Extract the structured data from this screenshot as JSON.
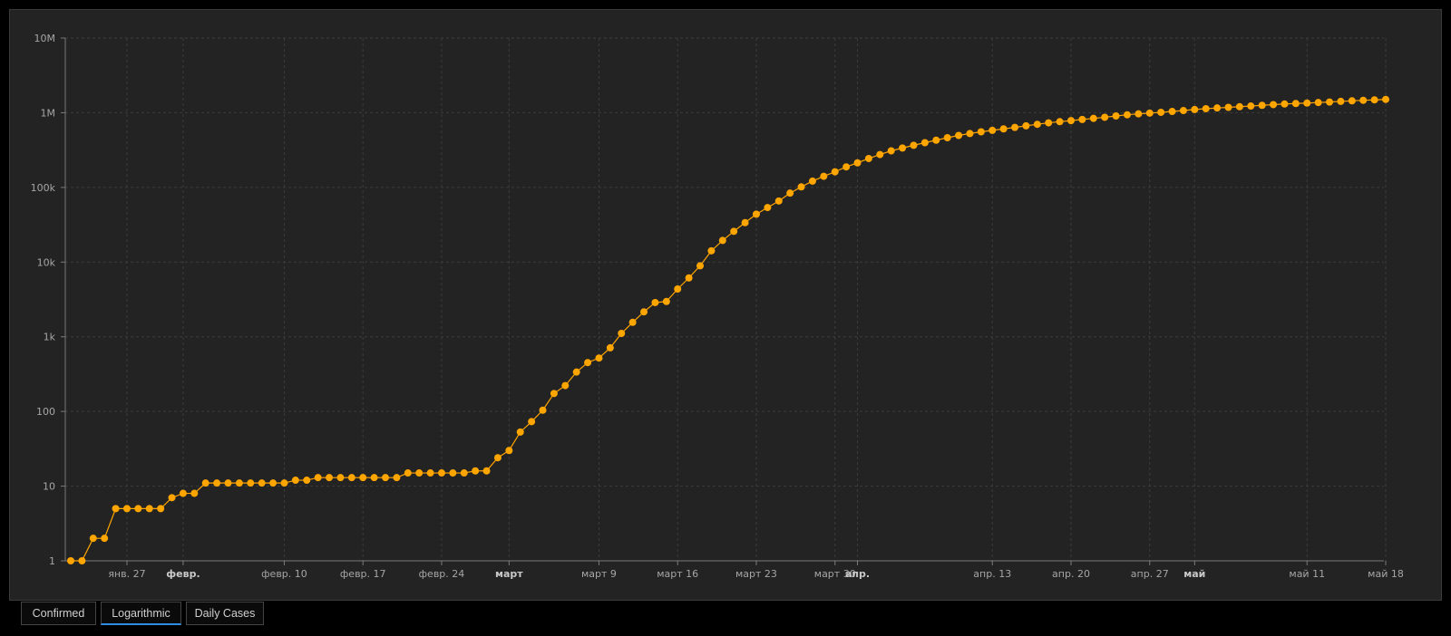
{
  "chart_data": {
    "type": "line",
    "scale_y": "log",
    "ylim": [
      1,
      10000000
    ],
    "y_ticks": [
      {
        "value": 1,
        "label": "1"
      },
      {
        "value": 10,
        "label": "10"
      },
      {
        "value": 100,
        "label": "100"
      },
      {
        "value": 1000,
        "label": "1k"
      },
      {
        "value": 10000,
        "label": "10k"
      },
      {
        "value": 100000,
        "label": "100k"
      },
      {
        "value": 1000000,
        "label": "1M"
      },
      {
        "value": 10000000,
        "label": "10M"
      }
    ],
    "x_start": "2020-01-22",
    "x_end": "2020-05-18",
    "x_ticks": [
      {
        "date": "2020-01-27",
        "label": "янв. 27",
        "bold": false
      },
      {
        "date": "2020-02-01",
        "label": "февр.",
        "bold": true
      },
      {
        "date": "2020-02-10",
        "label": "февр. 10",
        "bold": false
      },
      {
        "date": "2020-02-17",
        "label": "февр. 17",
        "bold": false
      },
      {
        "date": "2020-02-24",
        "label": "февр. 24",
        "bold": false
      },
      {
        "date": "2020-03-01",
        "label": "март",
        "bold": true
      },
      {
        "date": "2020-03-09",
        "label": "март 9",
        "bold": false
      },
      {
        "date": "2020-03-16",
        "label": "март 16",
        "bold": false
      },
      {
        "date": "2020-03-23",
        "label": "март 23",
        "bold": false
      },
      {
        "date": "2020-03-30",
        "label": "март 30",
        "bold": false
      },
      {
        "date": "2020-04-01",
        "label": "апр.",
        "bold": true
      },
      {
        "date": "2020-04-13",
        "label": "апр. 13",
        "bold": false
      },
      {
        "date": "2020-04-20",
        "label": "апр. 20",
        "bold": false
      },
      {
        "date": "2020-04-27",
        "label": "апр. 27",
        "bold": false
      },
      {
        "date": "2020-05-01",
        "label": "май",
        "bold": true
      },
      {
        "date": "2020-05-11",
        "label": "май 11",
        "bold": false
      },
      {
        "date": "2020-05-18",
        "label": "май 18",
        "bold": false
      }
    ],
    "grid": true,
    "series": [
      {
        "color": "#ffa500",
        "points": [
          {
            "x": "2020-01-22",
            "y": 1
          },
          {
            "x": "2020-01-23",
            "y": 1
          },
          {
            "x": "2020-01-24",
            "y": 2
          },
          {
            "x": "2020-01-25",
            "y": 2
          },
          {
            "x": "2020-01-26",
            "y": 5
          },
          {
            "x": "2020-01-27",
            "y": 5
          },
          {
            "x": "2020-01-28",
            "y": 5
          },
          {
            "x": "2020-01-29",
            "y": 5
          },
          {
            "x": "2020-01-30",
            "y": 5
          },
          {
            "x": "2020-01-31",
            "y": 7
          },
          {
            "x": "2020-02-01",
            "y": 8
          },
          {
            "x": "2020-02-02",
            "y": 8
          },
          {
            "x": "2020-02-03",
            "y": 11
          },
          {
            "x": "2020-02-04",
            "y": 11
          },
          {
            "x": "2020-02-05",
            "y": 11
          },
          {
            "x": "2020-02-06",
            "y": 11
          },
          {
            "x": "2020-02-07",
            "y": 11
          },
          {
            "x": "2020-02-08",
            "y": 11
          },
          {
            "x": "2020-02-09",
            "y": 11
          },
          {
            "x": "2020-02-10",
            "y": 11
          },
          {
            "x": "2020-02-11",
            "y": 12
          },
          {
            "x": "2020-02-12",
            "y": 12
          },
          {
            "x": "2020-02-13",
            "y": 13
          },
          {
            "x": "2020-02-14",
            "y": 13
          },
          {
            "x": "2020-02-15",
            "y": 13
          },
          {
            "x": "2020-02-16",
            "y": 13
          },
          {
            "x": "2020-02-17",
            "y": 13
          },
          {
            "x": "2020-02-18",
            "y": 13
          },
          {
            "x": "2020-02-19",
            "y": 13
          },
          {
            "x": "2020-02-20",
            "y": 13
          },
          {
            "x": "2020-02-21",
            "y": 15
          },
          {
            "x": "2020-02-22",
            "y": 15
          },
          {
            "x": "2020-02-23",
            "y": 15
          },
          {
            "x": "2020-02-24",
            "y": 15
          },
          {
            "x": "2020-02-25",
            "y": 15
          },
          {
            "x": "2020-02-26",
            "y": 15
          },
          {
            "x": "2020-02-27",
            "y": 16
          },
          {
            "x": "2020-02-28",
            "y": 16
          },
          {
            "x": "2020-02-29",
            "y": 24
          },
          {
            "x": "2020-03-01",
            "y": 30
          },
          {
            "x": "2020-03-02",
            "y": 53
          },
          {
            "x": "2020-03-03",
            "y": 73
          },
          {
            "x": "2020-03-04",
            "y": 104
          },
          {
            "x": "2020-03-05",
            "y": 174
          },
          {
            "x": "2020-03-06",
            "y": 222
          },
          {
            "x": "2020-03-07",
            "y": 337
          },
          {
            "x": "2020-03-08",
            "y": 451
          },
          {
            "x": "2020-03-09",
            "y": 519
          },
          {
            "x": "2020-03-10",
            "y": 711
          },
          {
            "x": "2020-03-11",
            "y": 1109
          },
          {
            "x": "2020-03-12",
            "y": 1561
          },
          {
            "x": "2020-03-13",
            "y": 2157
          },
          {
            "x": "2020-03-14",
            "y": 2870
          },
          {
            "x": "2020-03-15",
            "y": 2968
          },
          {
            "x": "2020-03-16",
            "y": 4360
          },
          {
            "x": "2020-03-17",
            "y": 6141
          },
          {
            "x": "2020-03-18",
            "y": 8914
          },
          {
            "x": "2020-03-19",
            "y": 14153
          },
          {
            "x": "2020-03-20",
            "y": 19479
          },
          {
            "x": "2020-03-21",
            "y": 25818
          },
          {
            "x": "2020-03-22",
            "y": 33756
          },
          {
            "x": "2020-03-23",
            "y": 43845
          },
          {
            "x": "2020-03-24",
            "y": 53740
          },
          {
            "x": "2020-03-25",
            "y": 65778
          },
          {
            "x": "2020-03-26",
            "y": 83836
          },
          {
            "x": "2020-03-27",
            "y": 101657
          },
          {
            "x": "2020-03-28",
            "y": 121465
          },
          {
            "x": "2020-03-29",
            "y": 140909
          },
          {
            "x": "2020-03-30",
            "y": 161831
          },
          {
            "x": "2020-03-31",
            "y": 188172
          },
          {
            "x": "2020-04-01",
            "y": 213242
          },
          {
            "x": "2020-04-02",
            "y": 243622
          },
          {
            "x": "2020-04-03",
            "y": 275367
          },
          {
            "x": "2020-04-04",
            "y": 308650
          },
          {
            "x": "2020-04-05",
            "y": 336802
          },
          {
            "x": "2020-04-06",
            "y": 366317
          },
          {
            "x": "2020-04-07",
            "y": 397121
          },
          {
            "x": "2020-04-08",
            "y": 428654
          },
          {
            "x": "2020-04-09",
            "y": 462780
          },
          {
            "x": "2020-04-10",
            "y": 496535
          },
          {
            "x": "2020-04-11",
            "y": 526396
          },
          {
            "x": "2020-04-12",
            "y": 555313
          },
          {
            "x": "2020-04-13",
            "y": 580619
          },
          {
            "x": "2020-04-14",
            "y": 607670
          },
          {
            "x": "2020-04-15",
            "y": 636350
          },
          {
            "x": "2020-04-16",
            "y": 667801
          },
          {
            "x": "2020-04-17",
            "y": 699706
          },
          {
            "x": "2020-04-18",
            "y": 732197
          },
          {
            "x": "2020-04-19",
            "y": 758809
          },
          {
            "x": "2020-04-20",
            "y": 784326
          },
          {
            "x": "2020-04-21",
            "y": 811865
          },
          {
            "x": "2020-04-22",
            "y": 840351
          },
          {
            "x": "2020-04-23",
            "y": 869170
          },
          {
            "x": "2020-04-24",
            "y": 905358
          },
          {
            "x": "2020-04-25",
            "y": 938154
          },
          {
            "x": "2020-04-26",
            "y": 965785
          },
          {
            "x": "2020-04-27",
            "y": 988197
          },
          {
            "x": "2020-04-28",
            "y": 1012582
          },
          {
            "x": "2020-04-29",
            "y": 1039909
          },
          {
            "x": "2020-04-30",
            "y": 1069424
          },
          {
            "x": "2020-05-01",
            "y": 1103461
          },
          {
            "x": "2020-05-02",
            "y": 1132539
          },
          {
            "x": "2020-05-03",
            "y": 1158040
          },
          {
            "x": "2020-05-04",
            "y": 1180375
          },
          {
            "x": "2020-05-05",
            "y": 1204351
          },
          {
            "x": "2020-05-06",
            "y": 1229331
          },
          {
            "x": "2020-05-07",
            "y": 1257023
          },
          {
            "x": "2020-05-08",
            "y": 1283929
          },
          {
            "x": "2020-05-09",
            "y": 1309550
          },
          {
            "x": "2020-05-10",
            "y": 1329260
          },
          {
            "x": "2020-05-11",
            "y": 1347881
          },
          {
            "x": "2020-05-12",
            "y": 1369376
          },
          {
            "x": "2020-05-13",
            "y": 1390406
          },
          {
            "x": "2020-05-14",
            "y": 1417774
          },
          {
            "x": "2020-05-15",
            "y": 1442824
          },
          {
            "x": "2020-05-16",
            "y": 1467820
          },
          {
            "x": "2020-05-17",
            "y": 1486757
          },
          {
            "x": "2020-05-18",
            "y": 1508308
          }
        ]
      }
    ]
  },
  "tabs": [
    {
      "label": "Confirmed",
      "active": false
    },
    {
      "label": "Logarithmic",
      "active": true
    },
    {
      "label": "Daily Cases",
      "active": false
    }
  ],
  "colors": {
    "panel": "#232323",
    "line": "#ffa500",
    "grid": "#3c3c3c",
    "axis": "#7a7a7a",
    "active_tab": "#2f8de4"
  }
}
